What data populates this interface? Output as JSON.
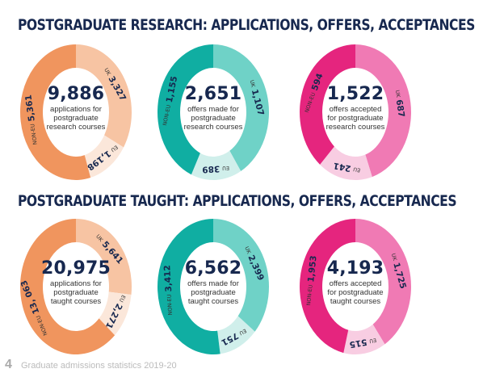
{
  "sections": [
    {
      "title": "POSTGRADUATE RESEARCH: APPLICATIONS, OFFERS, ACCEPTANCES"
    },
    {
      "title": "POSTGRADUATE TAUGHT: APPLICATIONS, OFFERS, ACCEPTANCES"
    }
  ],
  "footer": {
    "page": "4",
    "text": "Graduate admissions statistics 2019-20"
  },
  "chart_data": [
    {
      "type": "pie",
      "total": "9,886",
      "caption": [
        "applications for",
        "postgraduate",
        "research courses"
      ],
      "slices": [
        {
          "name": "UK",
          "label": "3,327",
          "value": 3327,
          "color": "#f7c4a3"
        },
        {
          "name": "EU",
          "label": "1,198",
          "value": 1198,
          "color": "#fbe7da"
        },
        {
          "name": "NON-EU",
          "label": "5,361",
          "value": 5361,
          "color": "#f0955e"
        }
      ]
    },
    {
      "type": "pie",
      "total": "2,651",
      "caption": [
        "offers made for",
        "postgraduate",
        "research courses"
      ],
      "slices": [
        {
          "name": "UK",
          "label": "1,107",
          "value": 1107,
          "color": "#6fd2c7"
        },
        {
          "name": "EU",
          "label": "389",
          "value": 389,
          "color": "#d0efeb"
        },
        {
          "name": "NON-EU",
          "label": "1,155",
          "value": 1155,
          "color": "#10ae a2"
        }
      ]
    },
    {
      "type": "pie",
      "total": "1,522",
      "caption": [
        "offers accepted",
        "for postgraduate",
        "research courses"
      ],
      "slices": [
        {
          "name": "UK",
          "label": "687",
          "value": 687,
          "color": "#f07ab4"
        },
        {
          "name": "EU",
          "label": "241",
          "value": 241,
          "color": "#f8cde2"
        },
        {
          "name": "NON-EU",
          "label": "594",
          "value": 594,
          "color": "#e5257e"
        }
      ]
    },
    {
      "type": "pie",
      "total": "20,975",
      "caption": [
        "applications for",
        "postgraduate",
        "taught courses"
      ],
      "slices": [
        {
          "name": "UK",
          "label": "5,641",
          "value": 5641,
          "color": "#f7c4a3"
        },
        {
          "name": "EU",
          "label": "2,271",
          "value": 2271,
          "color": "#fbe7da"
        },
        {
          "name": "NON-EU",
          "label": "13, 063",
          "value": 13063,
          "color": "#f0955e"
        }
      ]
    },
    {
      "type": "pie",
      "total": "6,562",
      "caption": [
        "offers made for",
        "postgraduate",
        "taught courses"
      ],
      "slices": [
        {
          "name": "UK",
          "label": "2,399",
          "value": 2399,
          "color": "#6fd2c7"
        },
        {
          "name": "EU",
          "label": "751",
          "value": 751,
          "color": "#d0efeb"
        },
        {
          "name": "NON-EU",
          "label": "3,412",
          "value": 3412,
          "color": "#10aea2"
        }
      ]
    },
    {
      "type": "pie",
      "total": "4,193",
      "caption": [
        "offers accepted",
        "for postgraduate",
        "taught courses"
      ],
      "slices": [
        {
          "name": "UK",
          "label": "1,725",
          "value": 1725,
          "color": "#f07ab4"
        },
        {
          "name": "EU",
          "label": "515",
          "value": 515,
          "color": "#f8cde2"
        },
        {
          "name": "NON-EU",
          "label": "1,953",
          "value": 1953,
          "color": "#e5257e"
        }
      ]
    }
  ]
}
